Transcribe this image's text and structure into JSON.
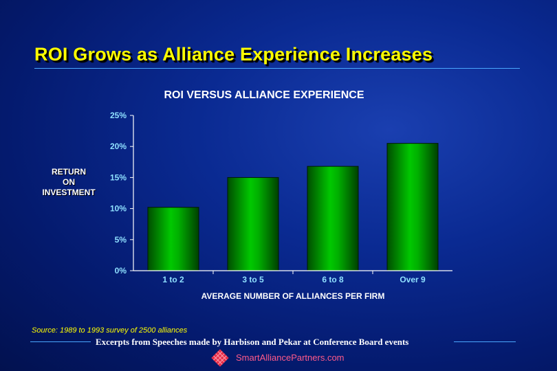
{
  "slide": {
    "title": "ROI Grows as Alliance Experience Increases",
    "source": "Source: 1989 to 1993 survey of 2500 alliances",
    "footer": "Excerpts from Speeches made by Harbison and Pekar at Conference Board events",
    "site": "SmartAlliancePartners.com"
  },
  "chart_data": {
    "type": "bar",
    "title": "ROI VERSUS ALLIANCE EXPERIENCE",
    "categories": [
      "1 to 2",
      "3 to 5",
      "6 to 8",
      "Over 9"
    ],
    "values": [
      10.2,
      15.0,
      16.8,
      20.5
    ],
    "ylabel_lines": [
      "RETURN",
      "ON",
      "INVESTMENT"
    ],
    "xlabel": "AVERAGE NUMBER OF ALLIANCES PER FIRM",
    "ylim": [
      0,
      25
    ],
    "yticks": [
      "0%",
      "5%",
      "10%",
      "15%",
      "20%",
      "25%"
    ],
    "grid": false,
    "bar_color": "#00b400"
  }
}
